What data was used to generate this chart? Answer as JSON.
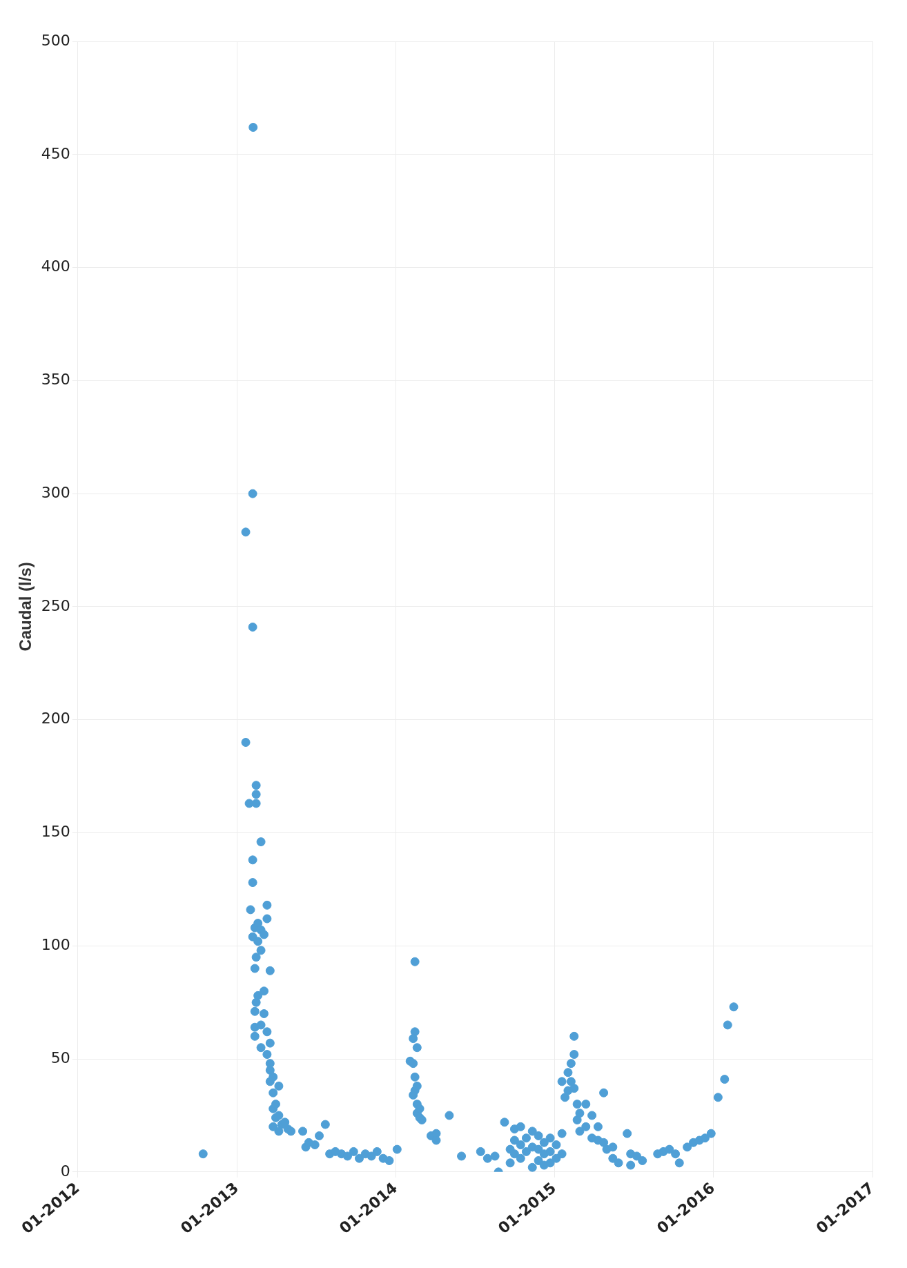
{
  "chart_data": {
    "type": "scatter",
    "ylabel": "Caudal (l/s)",
    "marker": "circle",
    "grid": true,
    "xlim": [
      "2012-01",
      "2017-01"
    ],
    "xticks": [
      {
        "value": "2012-01",
        "label": "01-2012"
      },
      {
        "value": "2013-01",
        "label": "01-2013"
      },
      {
        "value": "2014-01",
        "label": "01-2014"
      },
      {
        "value": "2015-01",
        "label": "01-2015"
      },
      {
        "value": "2016-01",
        "label": "01-2016"
      },
      {
        "value": "2017-01",
        "label": "01-2017"
      }
    ],
    "ylim": [
      0,
      500
    ],
    "yticks": [
      0,
      50,
      100,
      150,
      200,
      250,
      300,
      350,
      400,
      450,
      500
    ],
    "series": [
      {
        "color": "#4f9fd6",
        "x": [
          "2012-10-15",
          "2013-01-21",
          "2013-01-21",
          "2013-02-07",
          "2013-02-06",
          "2013-02-06",
          "2013-02-25",
          "2013-01-29",
          "2013-02-14",
          "2013-02-14",
          "2013-02-14",
          "2013-02-06",
          "2013-02-06",
          "2013-02-01",
          "2013-03-11",
          "2013-02-06",
          "2013-02-11",
          "2013-02-14",
          "2013-02-18",
          "2013-02-18",
          "2013-02-25",
          "2013-02-25",
          "2013-03-04",
          "2013-03-11",
          "2013-02-11",
          "2013-03-18",
          "2013-02-11",
          "2013-02-11",
          "2013-02-11",
          "2013-02-14",
          "2013-02-18",
          "2013-02-25",
          "2013-02-25",
          "2013-03-04",
          "2013-03-11",
          "2013-03-18",
          "2013-03-04",
          "2013-03-11",
          "2013-03-18",
          "2013-03-18",
          "2013-03-18",
          "2013-03-25",
          "2013-03-25",
          "2013-03-25",
          "2013-03-25",
          "2013-03-31",
          "2013-03-31",
          "2013-04-07",
          "2013-04-07",
          "2013-04-07",
          "2013-04-14",
          "2013-04-21",
          "2013-04-28",
          "2013-05-05",
          "2013-06-01",
          "2013-06-08",
          "2013-06-29",
          "2013-07-09",
          "2013-07-23",
          "2013-06-15",
          "2013-08-02",
          "2013-08-15",
          "2013-08-29",
          "2013-09-12",
          "2013-09-26",
          "2013-10-09",
          "2013-10-23",
          "2013-11-06",
          "2013-11-19",
          "2013-12-03",
          "2013-12-17",
          "2014-01-04",
          "2014-02-14",
          "2014-02-14",
          "2014-02-10",
          "2014-02-19",
          "2014-02-10",
          "2014-02-03",
          "2014-02-14",
          "2014-02-14",
          "2014-02-19",
          "2014-02-19",
          "2014-02-25",
          "2014-02-25",
          "2014-02-10",
          "2014-02-19",
          "2014-03-02",
          "2014-03-23",
          "2014-04-04",
          "2014-04-04",
          "2014-05-04",
          "2014-06-01",
          "2014-07-15",
          "2014-07-31",
          "2014-08-17",
          "2014-08-25",
          "2014-09-08",
          "2014-09-21",
          "2014-09-21",
          "2014-10-01",
          "2014-10-01",
          "2014-10-01",
          "2014-10-15",
          "2014-10-15",
          "2014-10-15",
          "2014-10-28",
          "2014-10-28",
          "2014-11-11",
          "2014-11-11",
          "2014-11-11",
          "2014-11-25",
          "2014-11-25",
          "2014-11-25",
          "2014-12-08",
          "2014-12-08",
          "2014-12-08",
          "2014-12-22",
          "2014-12-22",
          "2014-12-22",
          "2015-01-05",
          "2015-01-05",
          "2015-01-18",
          "2015-01-18",
          "2015-01-18",
          "2015-01-25",
          "2015-02-01",
          "2015-02-01",
          "2015-02-08",
          "2015-02-15",
          "2015-02-15",
          "2015-02-08",
          "2015-02-15",
          "2015-02-22",
          "2015-02-22",
          "2015-02-28",
          "2015-02-28",
          "2015-03-14",
          "2015-03-14",
          "2015-03-28",
          "2015-03-28",
          "2015-04-11",
          "2015-04-11",
          "2015-04-24",
          "2015-04-24",
          "2015-05-01",
          "2015-05-15",
          "2015-05-15",
          "2015-05-28",
          "2015-06-17",
          "2015-06-25",
          "2015-06-25",
          "2015-07-09",
          "2015-07-22",
          "2015-08-26",
          "2015-09-08",
          "2015-09-22",
          "2015-10-06",
          "2015-10-15",
          "2015-11-02",
          "2015-11-16",
          "2015-11-30",
          "2015-12-13",
          "2015-12-27",
          "2016-01-12",
          "2016-01-27",
          "2016-02-03",
          "2016-02-17"
        ],
        "values": [
          8,
          283,
          190,
          462,
          300,
          241,
          146,
          163,
          163,
          167,
          171,
          138,
          128,
          116,
          118,
          104,
          108,
          95,
          102,
          110,
          107,
          98,
          105,
          112,
          90,
          89,
          60,
          64,
          71,
          75,
          78,
          65,
          55,
          70,
          62,
          57,
          80,
          52,
          45,
          40,
          48,
          35,
          42,
          28,
          20,
          30,
          24,
          25,
          38,
          18,
          21,
          22,
          19,
          18,
          18,
          11,
          12,
          16,
          21,
          13,
          8,
          9,
          8,
          7,
          9,
          6,
          8,
          7,
          9,
          6,
          5,
          10,
          93,
          62,
          59,
          55,
          48,
          49,
          42,
          36,
          30,
          26,
          28,
          24,
          34,
          38,
          23,
          16,
          17,
          14,
          25,
          7,
          9,
          6,
          7,
          0,
          22,
          4,
          10,
          8,
          14,
          19,
          6,
          12,
          20,
          9,
          15,
          2,
          11,
          18,
          5,
          10,
          16,
          3,
          8,
          13,
          4,
          9,
          15,
          6,
          12,
          8,
          17,
          40,
          33,
          44,
          36,
          48,
          60,
          52,
          40,
          37,
          30,
          23,
          18,
          26,
          20,
          30,
          15,
          25,
          14,
          20,
          35,
          13,
          10,
          11,
          6,
          4,
          17,
          8,
          3,
          7,
          5,
          8,
          9,
          10,
          8,
          4,
          11,
          13,
          14,
          15,
          17,
          33,
          41,
          65,
          73
        ]
      }
    ]
  }
}
